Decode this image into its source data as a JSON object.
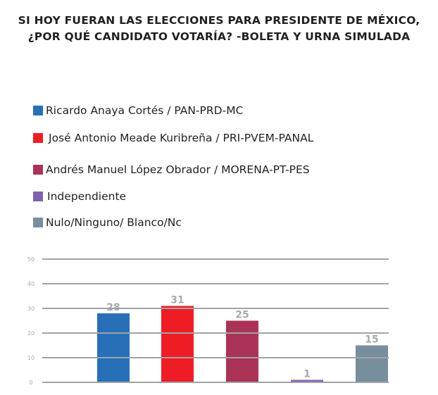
{
  "chart_data": {
    "type": "bar",
    "title_lines": [
      "SI HOY FUERAN LAS ELECCIONES PARA PRESIDENTE DE MÉXICO,",
      "¿POR QUÉ CANDIDATO VOTARÍA? -BOLETA Y URNA SIMULADA"
    ],
    "categories": [
      "Ricardo Anaya Cortés / PAN-PRD-MC",
      "José Antonio Meade Kuribreña / PRI-PVEM-PANAL",
      "Andrés Manuel López Obrador / MORENA-PT-PES",
      "Independiente",
      "Nulo/Ninguno/ Blanco/Nc"
    ],
    "values": [
      28,
      31,
      25,
      1,
      15
    ],
    "colors": [
      "#2770b8",
      "#ee1d25",
      "#ab3355",
      "#7f62ad",
      "#778e9d"
    ],
    "yticks": [
      0,
      10,
      20,
      30,
      40,
      50
    ],
    "ylim": [
      0,
      50
    ],
    "grid": true,
    "legend_position": "top-left",
    "xlabel": "",
    "ylabel": ""
  }
}
